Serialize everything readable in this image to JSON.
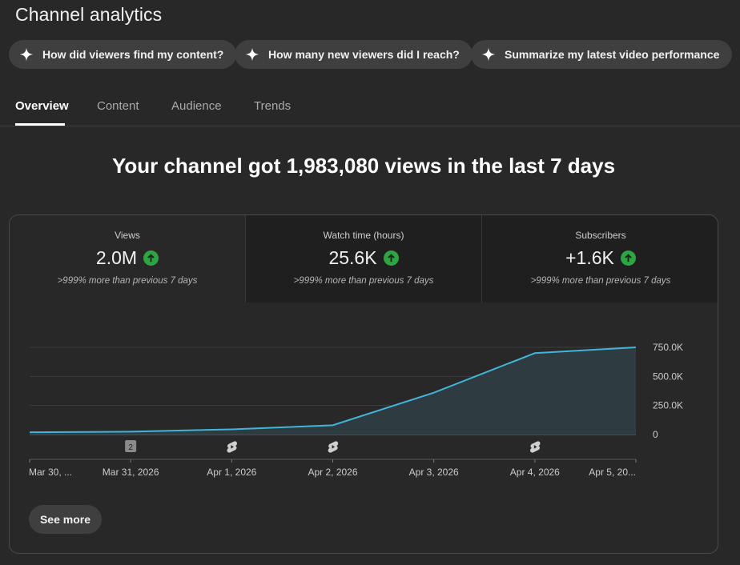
{
  "page": {
    "title": "Channel analytics"
  },
  "chips": [
    {
      "label": "How did viewers find my content?"
    },
    {
      "label": "How many new viewers did I reach?"
    },
    {
      "label": "Summarize my latest video performance"
    }
  ],
  "tabs": [
    {
      "label": "Overview",
      "active": true
    },
    {
      "label": "Content"
    },
    {
      "label": "Audience"
    },
    {
      "label": "Trends"
    }
  ],
  "headline": "Your channel got 1,983,080 views in the last 7 days",
  "metrics": [
    {
      "label": "Views",
      "value": "2.0M",
      "compare": ">999% more than previous 7 days",
      "trend": "up",
      "selected": true
    },
    {
      "label": "Watch time (hours)",
      "value": "25.6K",
      "compare": ">999% more than previous 7 days",
      "trend": "up"
    },
    {
      "label": "Subscribers",
      "value": "+1.6K",
      "compare": ">999% more than previous 7 days",
      "trend": "up"
    }
  ],
  "colors": {
    "line": "#41b4d9",
    "up_badge": "#2ba640",
    "fill": "#2f3d43"
  },
  "chart_data": {
    "type": "area",
    "y_ticks": [
      "750.0K",
      "500.0K",
      "250.0K",
      "0"
    ],
    "y_tick_values": [
      750000,
      500000,
      250000,
      0
    ],
    "ylim": [
      0,
      750000
    ],
    "x_labels": [
      "Mar 30, ...",
      "Mar 31, 2026",
      "Apr 1, 2026",
      "Apr 2, 2026",
      "Apr 3, 2026",
      "Apr 4, 2026",
      "Apr 5, 20..."
    ],
    "series": [
      {
        "values": [
          20000,
          25000,
          45000,
          80000,
          360000,
          700000,
          750000
        ]
      }
    ],
    "markers": [
      {
        "day": 1,
        "kind": "badge",
        "text": "2"
      },
      {
        "day": 2,
        "kind": "shorts"
      },
      {
        "day": 3,
        "kind": "shorts"
      },
      {
        "day": 5,
        "kind": "shorts"
      }
    ],
    "grid": true
  },
  "buttons": {
    "see_more": "See more"
  }
}
